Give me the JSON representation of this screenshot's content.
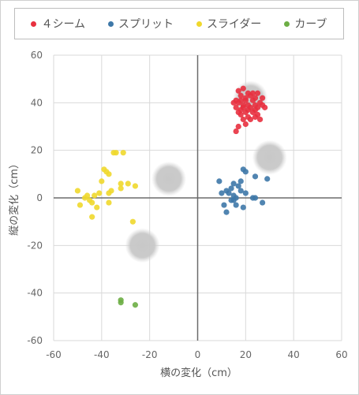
{
  "chart_data": {
    "type": "scatter",
    "xlabel": "横の変化（cm）",
    "ylabel": "縦の変化（cm）",
    "xlim": [
      -60,
      60
    ],
    "ylim": [
      -60,
      60
    ],
    "xticks": [
      "-60",
      "-40",
      "-20",
      "0",
      "20",
      "40",
      "60"
    ],
    "yticks": [
      "60",
      "40",
      "20",
      "0",
      "-20",
      "-40",
      "-60"
    ],
    "grid": true,
    "legend_position": "top",
    "series": [
      {
        "name": "４シーム",
        "color": "#e8303f",
        "points": [
          [
            19,
            46
          ],
          [
            17,
            45
          ],
          [
            21,
            44
          ],
          [
            23,
            44
          ],
          [
            25,
            44
          ],
          [
            18,
            43
          ],
          [
            22,
            43
          ],
          [
            20,
            42
          ],
          [
            24,
            42
          ],
          [
            27,
            42
          ],
          [
            16,
            41
          ],
          [
            18,
            41
          ],
          [
            20,
            41
          ],
          [
            23,
            41
          ],
          [
            26,
            40
          ],
          [
            15,
            40
          ],
          [
            17,
            40
          ],
          [
            19,
            39
          ],
          [
            21,
            39
          ],
          [
            24,
            39
          ],
          [
            27,
            39
          ],
          [
            16,
            38
          ],
          [
            19,
            38
          ],
          [
            22,
            38
          ],
          [
            25,
            38
          ],
          [
            28,
            38
          ],
          [
            18,
            37
          ],
          [
            21,
            37
          ],
          [
            24,
            37
          ],
          [
            17,
            36
          ],
          [
            20,
            36
          ],
          [
            23,
            36
          ],
          [
            25,
            35
          ],
          [
            18,
            35
          ],
          [
            21,
            34
          ],
          [
            24,
            34
          ],
          [
            19,
            33
          ],
          [
            22,
            33
          ],
          [
            26,
            33
          ],
          [
            20,
            31
          ],
          [
            17,
            30
          ],
          [
            16,
            28
          ]
        ]
      },
      {
        "name": "スプリット",
        "color": "#3e78a8",
        "points": [
          [
            19,
            12
          ],
          [
            20,
            11
          ],
          [
            29,
            8
          ],
          [
            24,
            9
          ],
          [
            9,
            7
          ],
          [
            15,
            6
          ],
          [
            18,
            7
          ],
          [
            14,
            4
          ],
          [
            17,
            5
          ],
          [
            12,
            3
          ],
          [
            10,
            2
          ],
          [
            13,
            2
          ],
          [
            15,
            1
          ],
          [
            16,
            0
          ],
          [
            18,
            3
          ],
          [
            20,
            2
          ],
          [
            23,
            0
          ],
          [
            24,
            0
          ],
          [
            15,
            -1
          ],
          [
            14,
            -1
          ],
          [
            27,
            -2
          ],
          [
            11,
            -3
          ],
          [
            16,
            -3
          ],
          [
            19,
            -4
          ],
          [
            12,
            -6
          ]
        ]
      },
      {
        "name": "スライダー",
        "color": "#f0d82c",
        "points": [
          [
            -35,
            19
          ],
          [
            -34,
            19
          ],
          [
            -31,
            19
          ],
          [
            -39,
            12
          ],
          [
            -38,
            11
          ],
          [
            -37,
            10
          ],
          [
            -40,
            7
          ],
          [
            -32,
            6
          ],
          [
            -29,
            6
          ],
          [
            -26,
            5
          ],
          [
            -32,
            4
          ],
          [
            -50,
            3
          ],
          [
            -41,
            2
          ],
          [
            -36,
            3
          ],
          [
            -37,
            2
          ],
          [
            -43,
            1
          ],
          [
            -46,
            1
          ],
          [
            -47,
            0
          ],
          [
            -45,
            -1
          ],
          [
            -44,
            -2
          ],
          [
            -37,
            -2
          ],
          [
            -49,
            -3
          ],
          [
            -42,
            -4
          ],
          [
            -44,
            -8
          ],
          [
            -27,
            -10
          ]
        ]
      },
      {
        "name": "カーブ",
        "color": "#6dae45",
        "points": [
          [
            -32,
            -43
          ],
          [
            -32,
            -44
          ],
          [
            -26,
            -45
          ]
        ]
      }
    ],
    "highlight_markers": [
      {
        "color": "#b0b0b0",
        "points": [
          [
            22,
            42
          ],
          [
            30,
            17
          ],
          [
            -12,
            8
          ],
          [
            -23,
            -20
          ]
        ]
      }
    ]
  }
}
